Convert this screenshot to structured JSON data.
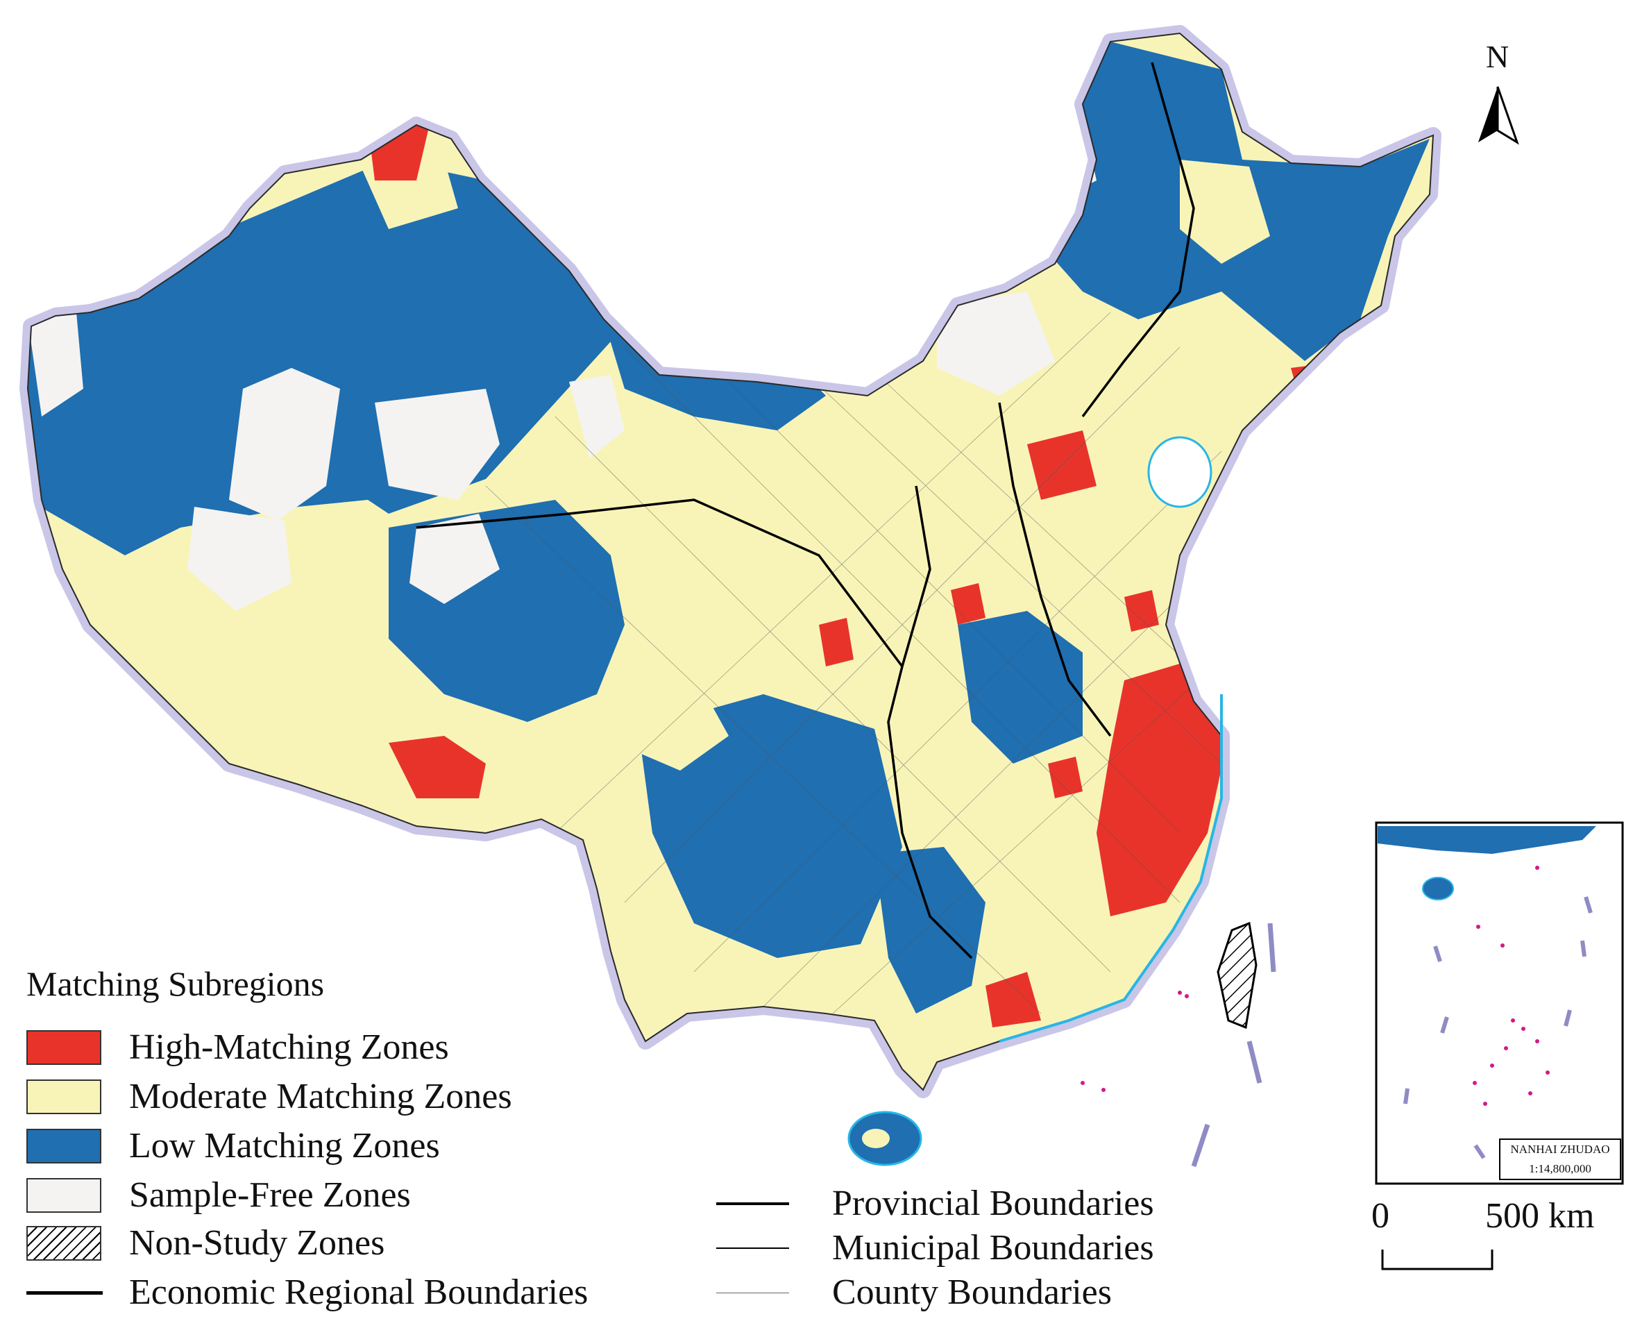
{
  "colors": {
    "high": "#e8332b",
    "moderate": "#f8f4b8",
    "low": "#1f6fb1",
    "sample_free": "#f4f3f1",
    "halo": "#b7b3de",
    "coast": "#27b6e6",
    "islands": "#d4188a",
    "boundary": "#000000"
  },
  "north_arrow": {
    "label": "N",
    "icon": "north-arrow-icon"
  },
  "legend": {
    "title": "Matching Subregions",
    "items": [
      {
        "label": "High-Matching Zones",
        "color": "#e8332b",
        "pattern": "solid"
      },
      {
        "label": "Moderate Matching Zones",
        "color": "#f8f4b8",
        "pattern": "solid"
      },
      {
        "label": "Low Matching Zones",
        "color": "#1f6fb1",
        "pattern": "solid"
      },
      {
        "label": "Sample-Free Zones",
        "color": "#f4f3f1",
        "pattern": "solid"
      },
      {
        "label": "Non-Study Zones",
        "color": "#ffffff",
        "pattern": "hatch"
      }
    ],
    "economic_boundary": "Economic Regional Boundaries"
  },
  "boundary_legend": {
    "provincial": "Provincial Boundaries",
    "municipal": "Municipal Boundaries",
    "county": "County Boundaries"
  },
  "inset": {
    "name": "NANHAI ZHUDAO",
    "scale": "1:14,800,000"
  },
  "scale_bar": {
    "start": "0",
    "end": "500 km"
  }
}
